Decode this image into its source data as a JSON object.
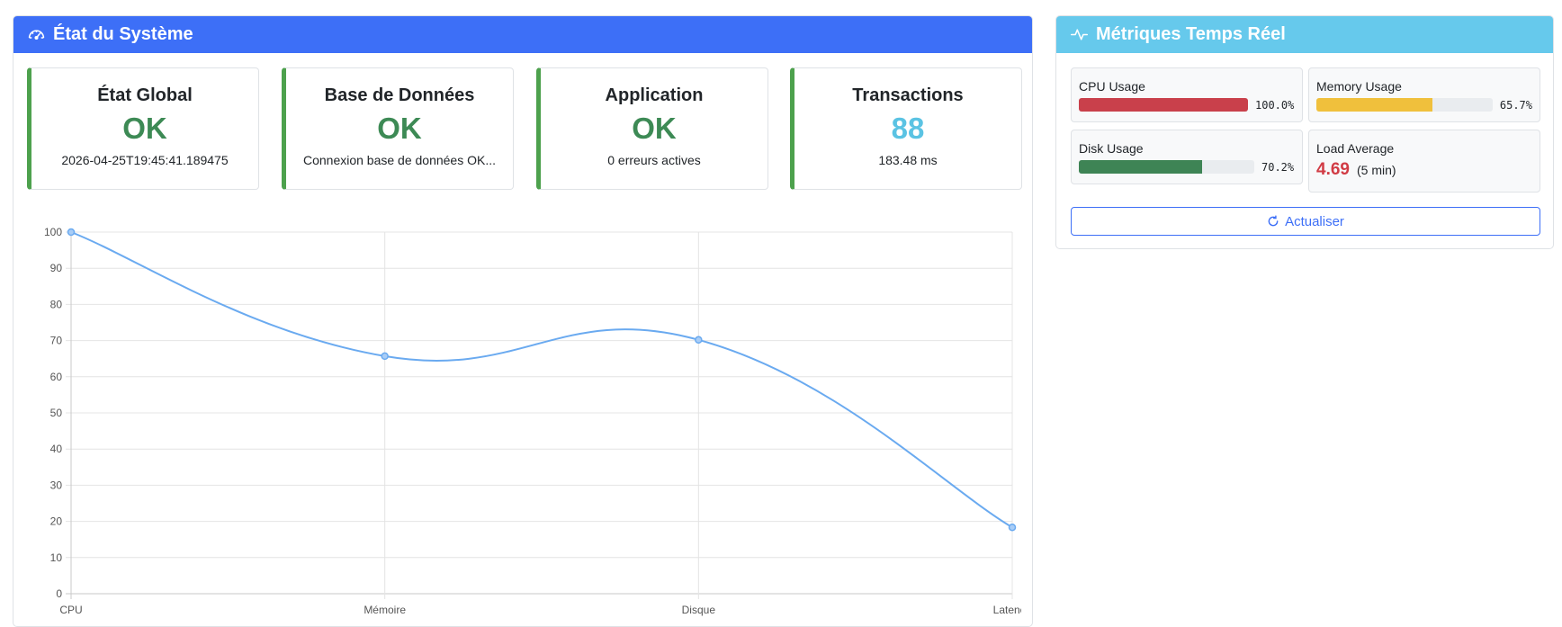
{
  "system_panel": {
    "title": "État du Système",
    "stats": [
      {
        "title": "État Global",
        "value": "OK",
        "sub": "2026-04-25T19:45:41.189475"
      },
      {
        "title": "Base de Données",
        "value": "OK",
        "sub": "Connexion base de données OK..."
      },
      {
        "title": "Application",
        "value": "OK",
        "sub": "0 erreurs actives"
      },
      {
        "title": "Transactions",
        "value": "88",
        "sub": "183.48 ms"
      }
    ]
  },
  "metrics_panel": {
    "title": "Métriques Temps Réel",
    "cpu": {
      "label": "CPU Usage",
      "value": 1.0,
      "text": "100.0%",
      "color": "#c9404b"
    },
    "memory": {
      "label": "Memory Usage",
      "value": 0.657,
      "text": "65.7%",
      "color": "#f0c03c"
    },
    "disk": {
      "label": "Disk Usage",
      "value": 0.702,
      "text": "70.2%",
      "color": "#3e8455"
    },
    "load": {
      "label": "Load Average",
      "value": "4.69",
      "unit": "(5 min)"
    },
    "refresh_label": "Actualiser"
  },
  "chart_data": {
    "type": "line",
    "categories": [
      "CPU",
      "Mémoire",
      "Disque",
      "Latence"
    ],
    "series": [
      {
        "values": [
          100,
          65.7,
          70.2,
          18.35
        ],
        "color": "#6aaaf0"
      }
    ],
    "ylim": [
      0,
      100
    ],
    "yticks": [
      0,
      10,
      20,
      30,
      40,
      50,
      60,
      70,
      80,
      90,
      100
    ],
    "grid": true
  }
}
